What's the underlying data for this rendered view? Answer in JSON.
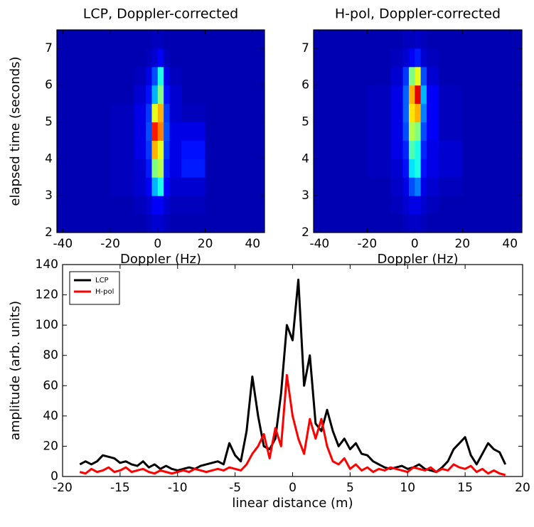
{
  "chart_data": [
    {
      "type": "heatmap",
      "title": "LCP, Doppler-corrected",
      "xlabel": "Doppler (Hz)",
      "ylabel": "elapsed time (seconds)",
      "colormap": "jet",
      "xlim": [
        -42.5,
        45
      ],
      "ylim": [
        2,
        7.5
      ],
      "xticks": [
        -40,
        -20,
        0,
        20,
        40
      ],
      "yticks": [
        2,
        3,
        4,
        5,
        6,
        7
      ],
      "xbins": [
        -42.5,
        -30,
        -20,
        -10,
        -5,
        -2.5,
        0,
        2.5,
        5,
        10,
        20,
        30,
        45
      ],
      "ybins": [
        2,
        2.5,
        3,
        3.5,
        4,
        4.5,
        5,
        5.5,
        6,
        6.5,
        7,
        7.5
      ],
      "z": [
        [
          0.05,
          0.05,
          0.05,
          0.05,
          0.06,
          0.08,
          0.08,
          0.06,
          0.05,
          0.05,
          0.05,
          0.05
        ],
        [
          0.05,
          0.05,
          0.05,
          0.06,
          0.08,
          0.12,
          0.12,
          0.08,
          0.06,
          0.06,
          0.05,
          0.05
        ],
        [
          0.05,
          0.05,
          0.06,
          0.08,
          0.12,
          0.3,
          0.4,
          0.12,
          0.08,
          0.08,
          0.05,
          0.05
        ],
        [
          0.05,
          0.05,
          0.06,
          0.08,
          0.15,
          0.5,
          0.55,
          0.15,
          0.1,
          0.15,
          0.05,
          0.05
        ],
        [
          0.05,
          0.05,
          0.06,
          0.1,
          0.18,
          0.7,
          0.6,
          0.18,
          0.1,
          0.14,
          0.05,
          0.05
        ],
        [
          0.05,
          0.05,
          0.06,
          0.1,
          0.2,
          0.85,
          0.75,
          0.2,
          0.1,
          0.1,
          0.05,
          0.05
        ],
        [
          0.05,
          0.05,
          0.06,
          0.1,
          0.18,
          0.6,
          0.7,
          0.18,
          0.08,
          0.06,
          0.05,
          0.05
        ],
        [
          0.05,
          0.05,
          0.05,
          0.08,
          0.14,
          0.3,
          0.5,
          0.14,
          0.08,
          0.05,
          0.05,
          0.05
        ],
        [
          0.05,
          0.05,
          0.05,
          0.06,
          0.1,
          0.2,
          0.4,
          0.1,
          0.06,
          0.05,
          0.05,
          0.05
        ],
        [
          0.05,
          0.05,
          0.05,
          0.05,
          0.06,
          0.08,
          0.12,
          0.06,
          0.05,
          0.05,
          0.05,
          0.05
        ],
        [
          0.05,
          0.05,
          0.05,
          0.05,
          0.05,
          0.06,
          0.06,
          0.05,
          0.05,
          0.05,
          0.05,
          0.05
        ]
      ]
    },
    {
      "type": "heatmap",
      "title": "H-pol, Doppler-corrected",
      "xlabel": "Doppler (Hz)",
      "colormap": "jet",
      "xlim": [
        -42.5,
        45
      ],
      "ylim": [
        2,
        7.5
      ],
      "xticks": [
        -40,
        -20,
        0,
        20,
        40
      ],
      "yticks": [
        2,
        3,
        4,
        5,
        6,
        7
      ],
      "xbins": [
        -42.5,
        -30,
        -20,
        -10,
        -5,
        -2.5,
        0,
        2.5,
        5,
        10,
        20,
        30,
        45
      ],
      "ybins": [
        2,
        2.5,
        3,
        3.5,
        4,
        4.5,
        5,
        5.5,
        6,
        6.5,
        7,
        7.5
      ],
      "z": [
        [
          0.05,
          0.05,
          0.05,
          0.05,
          0.06,
          0.07,
          0.07,
          0.06,
          0.05,
          0.05,
          0.05,
          0.05
        ],
        [
          0.05,
          0.05,
          0.05,
          0.06,
          0.08,
          0.1,
          0.1,
          0.08,
          0.06,
          0.05,
          0.05,
          0.05
        ],
        [
          0.05,
          0.05,
          0.05,
          0.07,
          0.1,
          0.2,
          0.25,
          0.1,
          0.08,
          0.06,
          0.05,
          0.05
        ],
        [
          0.05,
          0.05,
          0.06,
          0.08,
          0.14,
          0.35,
          0.4,
          0.14,
          0.1,
          0.08,
          0.05,
          0.05
        ],
        [
          0.05,
          0.05,
          0.06,
          0.1,
          0.16,
          0.45,
          0.4,
          0.16,
          0.1,
          0.08,
          0.05,
          0.05
        ],
        [
          0.05,
          0.05,
          0.06,
          0.1,
          0.2,
          0.55,
          0.5,
          0.2,
          0.12,
          0.06,
          0.05,
          0.05
        ],
        [
          0.05,
          0.05,
          0.06,
          0.1,
          0.22,
          0.65,
          0.7,
          0.25,
          0.12,
          0.06,
          0.05,
          0.05
        ],
        [
          0.05,
          0.05,
          0.06,
          0.1,
          0.22,
          0.7,
          0.9,
          0.3,
          0.12,
          0.06,
          0.05,
          0.05
        ],
        [
          0.05,
          0.05,
          0.05,
          0.08,
          0.18,
          0.5,
          0.6,
          0.2,
          0.08,
          0.05,
          0.05,
          0.05
        ],
        [
          0.05,
          0.05,
          0.05,
          0.06,
          0.08,
          0.12,
          0.15,
          0.08,
          0.06,
          0.05,
          0.05,
          0.05
        ],
        [
          0.05,
          0.05,
          0.05,
          0.05,
          0.06,
          0.06,
          0.07,
          0.06,
          0.05,
          0.05,
          0.05,
          0.05
        ]
      ]
    },
    {
      "type": "line",
      "xlabel": "linear distance (m)",
      "ylabel": "amplitude (arb. units)",
      "legend": "upper left",
      "xlim": [
        -20,
        20
      ],
      "ylim": [
        0,
        140
      ],
      "xticks": [
        -20,
        -15,
        -10,
        -5,
        0,
        5,
        10,
        15,
        20
      ],
      "yticks": [
        0,
        20,
        40,
        60,
        80,
        100,
        120,
        140
      ],
      "x": [
        -18.5,
        -18,
        -17.5,
        -17,
        -16.5,
        -16,
        -15.5,
        -15,
        -14.5,
        -14,
        -13.5,
        -13,
        -12.5,
        -12,
        -11.5,
        -11,
        -10.5,
        -10,
        -9.5,
        -9,
        -8.5,
        -8,
        -7.5,
        -7,
        -6.5,
        -6,
        -5.5,
        -5,
        -4.5,
        -4,
        -3.5,
        -3,
        -2.5,
        -2,
        -1.5,
        -1,
        -0.5,
        0,
        0.5,
        1,
        1.5,
        2,
        2.5,
        3,
        3.5,
        4,
        4.5,
        5,
        5.5,
        6,
        6.5,
        7,
        7.5,
        8,
        8.5,
        9,
        9.5,
        10,
        10.5,
        11,
        11.5,
        12,
        12.5,
        13,
        13.5,
        14,
        14.5,
        15,
        15.5,
        16,
        16.5,
        17,
        17.5,
        18,
        18.5
      ],
      "series": [
        {
          "name": "LCP",
          "color": "#000000",
          "values": [
            8,
            10,
            8,
            10,
            14,
            13,
            12,
            9,
            10,
            8,
            7,
            10,
            6,
            8,
            5,
            7,
            5,
            4,
            5,
            6,
            5,
            7,
            8,
            9,
            10,
            8,
            22,
            14,
            10,
            30,
            66,
            40,
            20,
            18,
            25,
            55,
            100,
            90,
            130,
            60,
            80,
            35,
            30,
            44,
            30,
            20,
            25,
            18,
            22,
            15,
            14,
            10,
            8,
            6,
            5,
            6,
            7,
            5,
            6,
            8,
            5,
            4,
            3,
            6,
            10,
            18,
            22,
            26,
            14,
            8,
            15,
            22,
            18,
            16,
            8
          ]
        },
        {
          "name": "H-pol",
          "color": "#ff0000",
          "values": [
            3,
            2,
            5,
            3,
            4,
            6,
            3,
            4,
            6,
            3,
            4,
            5,
            3,
            2,
            4,
            3,
            2,
            3,
            4,
            3,
            5,
            4,
            3,
            4,
            5,
            4,
            6,
            5,
            4,
            8,
            15,
            20,
            28,
            12,
            32,
            20,
            67,
            40,
            25,
            15,
            38,
            25,
            38,
            20,
            10,
            8,
            12,
            5,
            8,
            4,
            6,
            3,
            5,
            4,
            6,
            5,
            4,
            3,
            6,
            5,
            4,
            6,
            3,
            5,
            4,
            8,
            6,
            5,
            7,
            3,
            5,
            2,
            4,
            2,
            1
          ]
        }
      ]
    }
  ]
}
